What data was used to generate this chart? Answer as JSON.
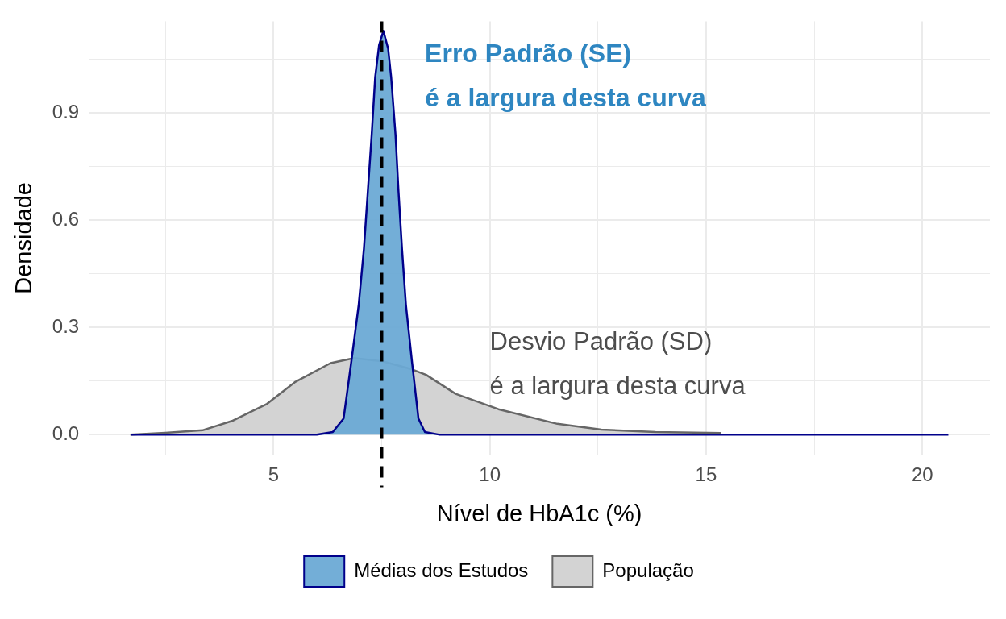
{
  "chart_data": {
    "type": "area",
    "xlabel": "Nível de HbA1c (%)",
    "ylabel": "Densidade",
    "xlim": [
      0.73,
      21.56
    ],
    "ylim": [
      -0.057,
      1.157
    ],
    "xticks": [
      {
        "value": 2.5,
        "label": null
      },
      5,
      {
        "value": 7.5,
        "label": null
      },
      10,
      {
        "value": 12.5,
        "label": null
      },
      15,
      {
        "value": 17.5,
        "label": null
      },
      20
    ],
    "yticks": [
      {
        "value": 0,
        "label": "0.0"
      },
      {
        "value": 0.15,
        "label": null
      },
      0.3,
      {
        "value": 0.45,
        "label": null
      },
      0.6,
      {
        "value": 0.75,
        "label": null
      },
      0.9,
      {
        "value": 1.05,
        "label": null
      }
    ],
    "grid": true,
    "legend": "bottom",
    "series": [
      {
        "name": "Médias dos Estudos",
        "color": "#6baad5",
        "x": [
          1.71,
          6.0,
          6.37,
          6.62,
          6.8,
          6.97,
          7.09,
          7.18,
          7.27,
          7.35,
          7.44,
          7.54,
          7.65,
          7.72,
          7.82,
          7.89,
          7.97,
          8.06,
          8.2,
          8.35,
          8.5,
          8.82,
          20.6
        ],
        "values": [
          0,
          0,
          0.007,
          0.045,
          0.205,
          0.364,
          0.52,
          0.68,
          0.84,
          1.0,
          1.09,
          1.13,
          1.08,
          1.0,
          0.84,
          0.68,
          0.52,
          0.364,
          0.205,
          0.045,
          0.007,
          0,
          0
        ]
      },
      {
        "name": "População",
        "color": "#d3d3d3",
        "x": [
          1.69,
          2.5,
          3.36,
          4.04,
          4.85,
          5.51,
          6.32,
          6.86,
          7.52,
          8.19,
          8.53,
          9.21,
          10.2,
          11.56,
          12.58,
          13.83,
          15.34
        ],
        "values": [
          0,
          0.005,
          0.012,
          0.038,
          0.086,
          0.148,
          0.2,
          0.214,
          0.205,
          0.183,
          0.167,
          0.114,
          0.071,
          0.03,
          0.014,
          0.007,
          0.004
        ]
      }
    ],
    "ref_lines": [
      {
        "axis": "x",
        "value": 7.5,
        "label": null,
        "color": "#000000",
        "line_style": "dashed"
      }
    ],
    "annotations": [
      "Erro Padrão (SE)\né a largura desta curva",
      "Desvio Padrão (SD)\né a largura desta curva"
    ]
  }
}
